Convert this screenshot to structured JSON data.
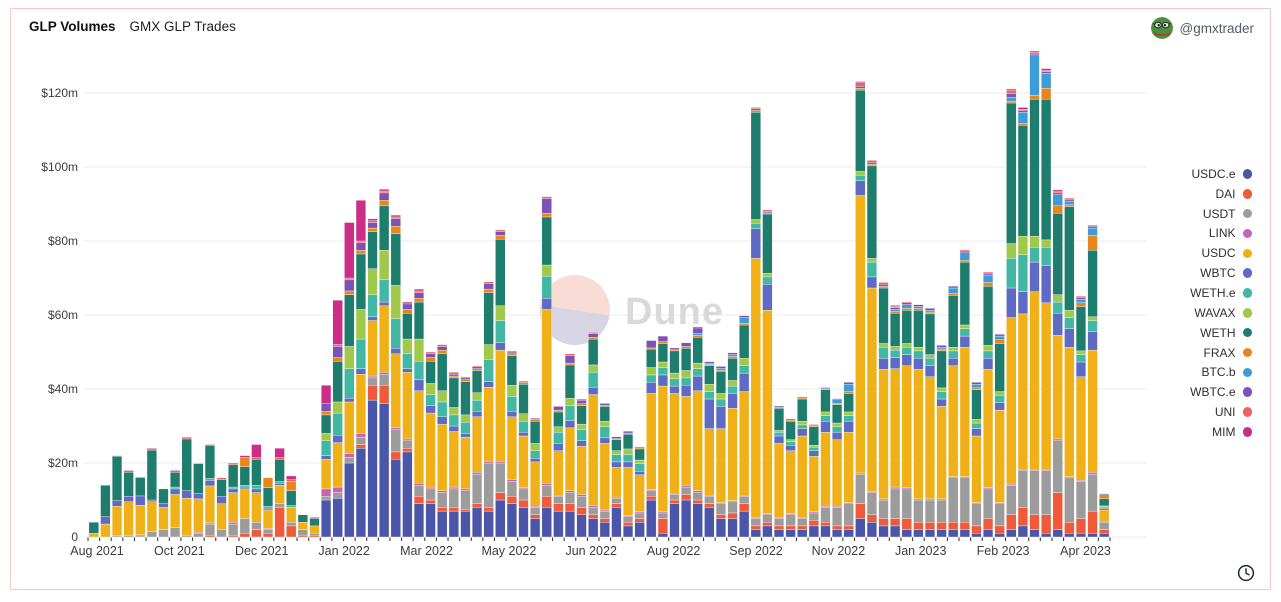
{
  "header": {
    "title": "GLP Volumes",
    "subtitle": "GMX GLP Trades",
    "user_handle": "@gmxtrader"
  },
  "watermark": {
    "text": "Dune"
  },
  "chart_data": {
    "type": "bar",
    "stacked": true,
    "title": "GLP Volumes",
    "subtitle": "GMX GLP Trades",
    "unit": "USD millions",
    "granularity": "weekly",
    "grid": "horizontal",
    "legend_position": "right",
    "ylim": [
      0,
      130
    ],
    "yticks": [
      {
        "v": 0,
        "label": "0"
      },
      {
        "v": 20,
        "label": "$20m"
      },
      {
        "v": 40,
        "label": "$40m"
      },
      {
        "v": 60,
        "label": "$60m"
      },
      {
        "v": 80,
        "label": "$80m"
      },
      {
        "v": 100,
        "label": "$100m"
      },
      {
        "v": 120,
        "label": "$120m"
      }
    ],
    "xticks": [
      "Aug 2021",
      "Oct 2021",
      "Dec 2021",
      "Jan 2022",
      "Mar 2022",
      "May 2022",
      "Jun 2022",
      "Aug 2022",
      "Sep 2022",
      "Nov 2022",
      "Jan 2023",
      "Feb 2023",
      "Apr 2023"
    ],
    "series_names": [
      "USDC.e",
      "DAI",
      "USDT",
      "LINK",
      "USDC",
      "WBTC",
      "WETH.e",
      "WAVAX",
      "WETH",
      "FRAX",
      "BTC.b",
      "WBTC.e",
      "UNI",
      "MIM"
    ],
    "colors": {
      "USDC.e": "#4c56a8",
      "DAI": "#ee5a3a",
      "USDT": "#9c9c9c",
      "LINK": "#c763b8",
      "USDC": "#f0b018",
      "WBTC": "#5f6ac4",
      "WETH.e": "#42b8a4",
      "WAVAX": "#a0c84a",
      "WETH": "#1f7d6d",
      "FRAX": "#e8861e",
      "BTC.b": "#3d9bd8",
      "WBTC.e": "#7a52b8",
      "UNI": "#ec6360",
      "MIM": "#cb2d87"
    },
    "weeks": [
      [
        0,
        0,
        0,
        0,
        1,
        0,
        0,
        0,
        3,
        0,
        0,
        0,
        0,
        0
      ],
      [
        0,
        0,
        0,
        0,
        3.5,
        2,
        0,
        0,
        8.5,
        0,
        0,
        0,
        0,
        0
      ],
      [
        0,
        0,
        0.3,
        0,
        8,
        1.5,
        0,
        0,
        12,
        0,
        0,
        0,
        0.2,
        0
      ],
      [
        0,
        0,
        0.5,
        0,
        9,
        1.5,
        0,
        0,
        6.5,
        0,
        0,
        0,
        0.5,
        0
      ],
      [
        0,
        0,
        0.3,
        0.3,
        8,
        2.5,
        0,
        0,
        5,
        0,
        0,
        0,
        0,
        0
      ],
      [
        0,
        0,
        1.5,
        0,
        8,
        0.5,
        0,
        0,
        13.5,
        0,
        0,
        0,
        0.5,
        0
      ],
      [
        0,
        0,
        2,
        0,
        6,
        1,
        0,
        0,
        4,
        0,
        0,
        0,
        0,
        0
      ],
      [
        0,
        0,
        2.5,
        0,
        9,
        1.5,
        0.5,
        0,
        4,
        0,
        0,
        0,
        0.5,
        0
      ],
      [
        0,
        0,
        0.5,
        0,
        10,
        2,
        0,
        0,
        14,
        0,
        0,
        0,
        0.5,
        0
      ],
      [
        0,
        0,
        1,
        0.3,
        9,
        1.5,
        0,
        0,
        8,
        0,
        0,
        0,
        0.2,
        0
      ],
      [
        0,
        0.5,
        3,
        0.3,
        10,
        1.5,
        0.5,
        0,
        9,
        0,
        0,
        0,
        0.2,
        0
      ],
      [
        0,
        0,
        2,
        0,
        7,
        2,
        0,
        0,
        4.5,
        0,
        0,
        0,
        0.5,
        0
      ],
      [
        0,
        0.5,
        3,
        0.5,
        8,
        1,
        0.5,
        0,
        6,
        0,
        0,
        0,
        0.5,
        0
      ],
      [
        0,
        1,
        4,
        0,
        8,
        0.5,
        0.5,
        0,
        5,
        2.5,
        0,
        0,
        0,
        0.5
      ],
      [
        0,
        2,
        2,
        0,
        8,
        1,
        1,
        0,
        7,
        0,
        0,
        0,
        0.5,
        3.5
      ],
      [
        0,
        1,
        1,
        0.3,
        5,
        0.5,
        0.5,
        0,
        5,
        2.7,
        0,
        0,
        0,
        0
      ],
      [
        0,
        8,
        1,
        0,
        5,
        0.5,
        0.5,
        0,
        6,
        0,
        0,
        0,
        0.5,
        2.5
      ],
      [
        0,
        3,
        1,
        0,
        4,
        0,
        0.5,
        0,
        4,
        2.5,
        0,
        0,
        0.5,
        1
      ],
      [
        0,
        0.5,
        1.5,
        0,
        2,
        0,
        0,
        0,
        2,
        0,
        0,
        0,
        0,
        0
      ],
      [
        0,
        0.5,
        0.5,
        0,
        2,
        0,
        0,
        0,
        2,
        0,
        0,
        0,
        0,
        0.3
      ],
      [
        10,
        0,
        1,
        2,
        8,
        1,
        4,
        2,
        5,
        1,
        0,
        2,
        0,
        5
      ],
      [
        10.5,
        0,
        1.5,
        1.5,
        12,
        2,
        6,
        3,
        11,
        1,
        0,
        3,
        0.5,
        12
      ],
      [
        20,
        0,
        1.5,
        1,
        14,
        1,
        8,
        6,
        14,
        1,
        0,
        3,
        0.5,
        15
      ],
      [
        24,
        1,
        2,
        1,
        16,
        1.5,
        8,
        8,
        15,
        1,
        0,
        2,
        0.5,
        11
      ],
      [
        37,
        4,
        2,
        0.5,
        15,
        1,
        6,
        7,
        10,
        1,
        0,
        1.5,
        0.5,
        0.5
      ],
      [
        36,
        5,
        3,
        0.5,
        18,
        1,
        6,
        8,
        12,
        1.5,
        0,
        2,
        0.5,
        0.5
      ],
      [
        21,
        2,
        6,
        0.5,
        20,
        1.5,
        8,
        9,
        14,
        2,
        0,
        2,
        0.5,
        0.5
      ],
      [
        23,
        1,
        2,
        0.5,
        18,
        1,
        4,
        4,
        7,
        1,
        0,
        1.5,
        0,
        0.5
      ],
      [
        9,
        2,
        3,
        0.5,
        25,
        3,
        5,
        6,
        10,
        1,
        0,
        1.5,
        0.5,
        0.5
      ],
      [
        9,
        1,
        3,
        0.5,
        20,
        2,
        3,
        3,
        6,
        1,
        0,
        1,
        0.5,
        0
      ],
      [
        7,
        1,
        4,
        0.5,
        18,
        2,
        4,
        3,
        10,
        1,
        0,
        1,
        0.5,
        0
      ],
      [
        7,
        1,
        5,
        0.5,
        15,
        1.5,
        3,
        2,
        8,
        0.5,
        0,
        0.5,
        0.5,
        0
      ],
      [
        7,
        0.5,
        5,
        0.5,
        14,
        1,
        3,
        2,
        9,
        0.5,
        0,
        0.5,
        0.3,
        0
      ],
      [
        8,
        1,
        8,
        0.5,
        15,
        1.5,
        3,
        2,
        6,
        0.5,
        0,
        0.5,
        0.3,
        0
      ],
      [
        7,
        1,
        12,
        0.5,
        20,
        1.5,
        6,
        4,
        14,
        1,
        0,
        1.5,
        0.5,
        0
      ],
      [
        10,
        2,
        8,
        0.5,
        30,
        2,
        6,
        4,
        18,
        1,
        0,
        1,
        0.5,
        0
      ],
      [
        9,
        2,
        4,
        0.5,
        17,
        1.5,
        4,
        3,
        8,
        0.5,
        0,
        0.5,
        0.3,
        0
      ],
      [
        8,
        2,
        3,
        0.3,
        14,
        1,
        3,
        2,
        8,
        0.5,
        0,
        0.3,
        0,
        0
      ],
      [
        5,
        1,
        2,
        0.3,
        12,
        1,
        2,
        2,
        6,
        0.5,
        0,
        0.3,
        0,
        0
      ],
      [
        8,
        3,
        3,
        0.5,
        47,
        3,
        6,
        3,
        13,
        1,
        0,
        4,
        0.5,
        0
      ],
      [
        7,
        2,
        2,
        0.3,
        12,
        2,
        3,
        1.5,
        4,
        0.5,
        0,
        1,
        0,
        0
      ],
      [
        7,
        2,
        3,
        0.5,
        17,
        2,
        4,
        2,
        9,
        0.5,
        0,
        2,
        0.5,
        0
      ],
      [
        6,
        2,
        3,
        0.5,
        13,
        1.5,
        3,
        1.5,
        5,
        0.5,
        0,
        1,
        0.3,
        0
      ],
      [
        5,
        1,
        2,
        0.5,
        30,
        2,
        4,
        2,
        7,
        0.5,
        0,
        1,
        0.3,
        0
      ],
      [
        4,
        1,
        2,
        0.3,
        18,
        1.5,
        3,
        1.5,
        4,
        0.3,
        0,
        0.5,
        0,
        0
      ],
      [
        8,
        1,
        1.5,
        0.3,
        8,
        1.5,
        2,
        1,
        3,
        0.3,
        0,
        0.5,
        0,
        0
      ],
      [
        3,
        1,
        1.5,
        0.3,
        13,
        1.5,
        2,
        1.5,
        4,
        0.3,
        0,
        0.5,
        0,
        0
      ],
      [
        4,
        1,
        1.5,
        0.3,
        10,
        1,
        2,
        1,
        3,
        0.3,
        0,
        0.3,
        0,
        0
      ],
      [
        10,
        1,
        1.5,
        0.3,
        26,
        3,
        2,
        2,
        5,
        0.3,
        0,
        2,
        0,
        0
      ],
      [
        1,
        4,
        1.5,
        0.3,
        34,
        3,
        2,
        1.5,
        5,
        0.5,
        0,
        1.5,
        0,
        0
      ],
      [
        9,
        1,
        1.5,
        0.3,
        27,
        2,
        2,
        1.5,
        6,
        0.3,
        0,
        0.5,
        0,
        0
      ],
      [
        10,
        1.5,
        2,
        0.5,
        24,
        3,
        2,
        2,
        6,
        0.5,
        0,
        1,
        0,
        0
      ],
      [
        9,
        1,
        2,
        0.5,
        27,
        4,
        2,
        1.5,
        7,
        0.5,
        0.5,
        1.5,
        0,
        0.3
      ],
      [
        8,
        1,
        2,
        0.3,
        18,
        8,
        2,
        2,
        5,
        0.3,
        0.3,
        0.5,
        0,
        0
      ],
      [
        5,
        1,
        3,
        0.3,
        20,
        6,
        2,
        1.5,
        6,
        0.3,
        0.5,
        0.5,
        0,
        0
      ],
      [
        5,
        1.5,
        3,
        0.3,
        25,
        4,
        2,
        1.5,
        6,
        0.5,
        0.5,
        0.5,
        0,
        0
      ],
      [
        7,
        2,
        2,
        0.3,
        28,
        5,
        2,
        2,
        9,
        0.5,
        1.5,
        0.5,
        0,
        0
      ],
      [
        2,
        1,
        2,
        0.3,
        70,
        8,
        1.5,
        1,
        29,
        0.5,
        0,
        0.5,
        0.3,
        0
      ],
      [
        3,
        1,
        2,
        0.3,
        55,
        7,
        2,
        1,
        16,
        0.3,
        0,
        0.3,
        0.5,
        0
      ],
      [
        2,
        1,
        2,
        0.3,
        20,
        2,
        1,
        0.5,
        6,
        0.3,
        0,
        0.3,
        0,
        0
      ],
      [
        2,
        1,
        3,
        0.3,
        17,
        1.5,
        1,
        0.5,
        5,
        0.3,
        0,
        0.3,
        0,
        0
      ],
      [
        2,
        1,
        2,
        0.3,
        22,
        2,
        1,
        1,
        6,
        0.3,
        0,
        0.3,
        0,
        0
      ],
      [
        3,
        1.5,
        2,
        0.3,
        15,
        1.5,
        1,
        0.5,
        5,
        0.3,
        0,
        0.3,
        0,
        0
      ],
      [
        3,
        1,
        4,
        0.3,
        20,
        3,
        1.5,
        1,
        6,
        0.3,
        0,
        0.3,
        0,
        0
      ],
      [
        2,
        1,
        5,
        0.3,
        18,
        2,
        1.5,
        1,
        5,
        0.3,
        1,
        0.3,
        0,
        0
      ],
      [
        2,
        1,
        6,
        0.3,
        19,
        3,
        1.5,
        1,
        5,
        0.5,
        2,
        0.5,
        0,
        0
      ],
      [
        5,
        4,
        8,
        0.3,
        75,
        4,
        1.5,
        1,
        22,
        0.5,
        0,
        0.5,
        1,
        0.3
      ],
      [
        4,
        2,
        6,
        0.3,
        55,
        3,
        4,
        1,
        25,
        0.5,
        0,
        0.5,
        0.5,
        0
      ],
      [
        3,
        2,
        5,
        0.3,
        35,
        3,
        3,
        1,
        15,
        0.5,
        0,
        0.5,
        0.5,
        0
      ],
      [
        3,
        2,
        8,
        0.5,
        32,
        3,
        2,
        1,
        9,
        0.5,
        0.5,
        0.5,
        0.3,
        0.3
      ],
      [
        2,
        3,
        8,
        0.3,
        33,
        3,
        2,
        1,
        9,
        0.5,
        1,
        0.5,
        0.3,
        0
      ],
      [
        2,
        2,
        6,
        0.3,
        35,
        3,
        2,
        1,
        10,
        0.5,
        0.5,
        0.5,
        0,
        0
      ],
      [
        2,
        2,
        6,
        0.3,
        33,
        3,
        2,
        1,
        11,
        0.5,
        0.5,
        0.5,
        0,
        0
      ],
      [
        2,
        2,
        6,
        0.3,
        25,
        2,
        2,
        1,
        10,
        0.5,
        0.5,
        0.5,
        0,
        0
      ],
      [
        2,
        2,
        12,
        0.3,
        30,
        2,
        2,
        1,
        14,
        0.5,
        1.5,
        0.5,
        0,
        0
      ],
      [
        2,
        2,
        12,
        0.3,
        35,
        3,
        2,
        1,
        17,
        0.5,
        2,
        0.5,
        0.3,
        0
      ],
      [
        1,
        2,
        6,
        0.3,
        18,
        2,
        1.5,
        1,
        8,
        0.5,
        1,
        0.5,
        0,
        0
      ],
      [
        2,
        3,
        8,
        0.3,
        32,
        3,
        2,
        1.5,
        16,
        1,
        2,
        0.5,
        0.3,
        0
      ],
      [
        1,
        2,
        6,
        0.3,
        25,
        2,
        2,
        1,
        13,
        1,
        1,
        0.5,
        0,
        0
      ],
      [
        2,
        4,
        8,
        0.3,
        45,
        8,
        8,
        4,
        38,
        0.5,
        1,
        1,
        1,
        0.3
      ],
      [
        3,
        5,
        10,
        0.3,
        42,
        6,
        10,
        5,
        30,
        0.5,
        3,
        0.5,
        0.3,
        0.5
      ],
      [
        2,
        4,
        12,
        0.3,
        48,
        8,
        4,
        3,
        37,
        1,
        11,
        0.5,
        0.3,
        0.3
      ],
      [
        1,
        5,
        12,
        0.3,
        45,
        10,
        5,
        2,
        38,
        3,
        4,
        0.5,
        0.3,
        0.5
      ],
      [
        2,
        10,
        14,
        0.5,
        28,
        6,
        3,
        2,
        22,
        2,
        3,
        0.5,
        0.3,
        0.5
      ],
      [
        1,
        3,
        12,
        0.3,
        35,
        5,
        3,
        2,
        28,
        0.5,
        1,
        0.5,
        0.3,
        0
      ],
      [
        1,
        4,
        10,
        0.3,
        28,
        4,
        2,
        1,
        12,
        1,
        1,
        0.5,
        0.3,
        0
      ],
      [
        1,
        6,
        10,
        0.5,
        33,
        5,
        3,
        1,
        18,
        4,
        2,
        0.5,
        0.3,
        0
      ],
      [
        1,
        1,
        2,
        0.3,
        3,
        0.5,
        0.3,
        0.3,
        2,
        1,
        0,
        0.3,
        0,
        0
      ]
    ]
  }
}
